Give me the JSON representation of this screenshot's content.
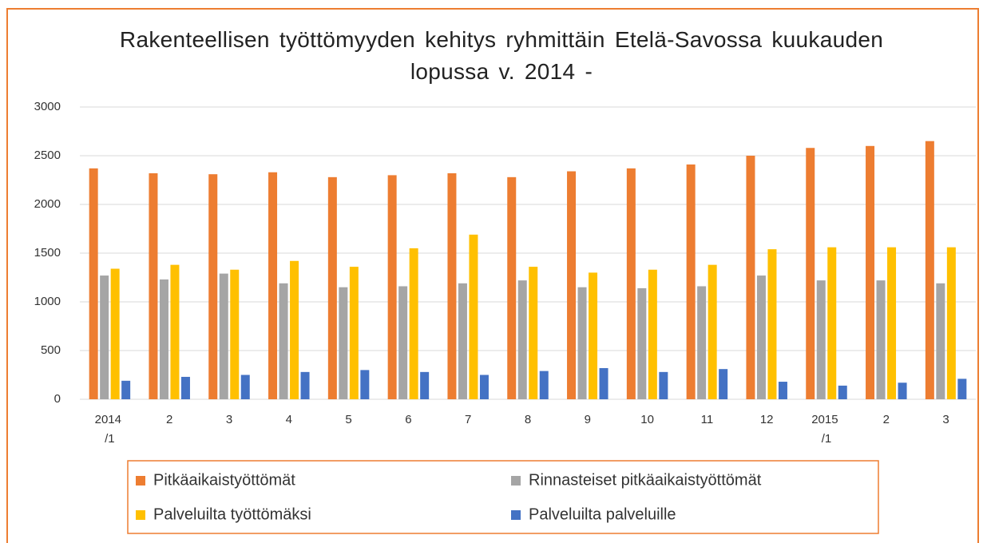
{
  "chart_data": {
    "type": "bar",
    "title": "Rakenteellisen työttömyyden kehitys ryhmittäin Etelä-Savossa kuukauden lopussa v. 2014 -",
    "categories": [
      "2014 /1",
      "2",
      "3",
      "4",
      "5",
      "6",
      "7",
      "8",
      "9",
      "10",
      "11",
      "12",
      "2015 /1",
      "2",
      "3"
    ],
    "series": [
      {
        "name": "Pitkäaikaistyöttömät",
        "color": "#ed7d31",
        "values": [
          2370,
          2320,
          2310,
          2330,
          2280,
          2300,
          2320,
          2280,
          2340,
          2370,
          2410,
          2500,
          2580,
          2600,
          2650
        ]
      },
      {
        "name": "Rinnasteiset pitkäaikaistyöttömät",
        "color": "#a5a5a5",
        "values": [
          1270,
          1230,
          1290,
          1190,
          1150,
          1160,
          1190,
          1220,
          1150,
          1140,
          1160,
          1270,
          1220,
          1220,
          1190
        ]
      },
      {
        "name": "Palveluilta työttömäksi",
        "color": "#ffc000",
        "values": [
          1340,
          1380,
          1330,
          1420,
          1360,
          1550,
          1690,
          1360,
          1300,
          1330,
          1380,
          1540,
          1560,
          1560,
          1560
        ]
      },
      {
        "name": "Palveluilta palveluille",
        "color": "#4472c4",
        "values": [
          190,
          230,
          250,
          280,
          300,
          280,
          250,
          290,
          320,
          280,
          310,
          180,
          140,
          170,
          210
        ]
      }
    ],
    "ylim": [
      0,
      3000
    ],
    "yticks": [
      0,
      500,
      1000,
      1500,
      2000,
      2500,
      3000
    ],
    "grid": true
  }
}
